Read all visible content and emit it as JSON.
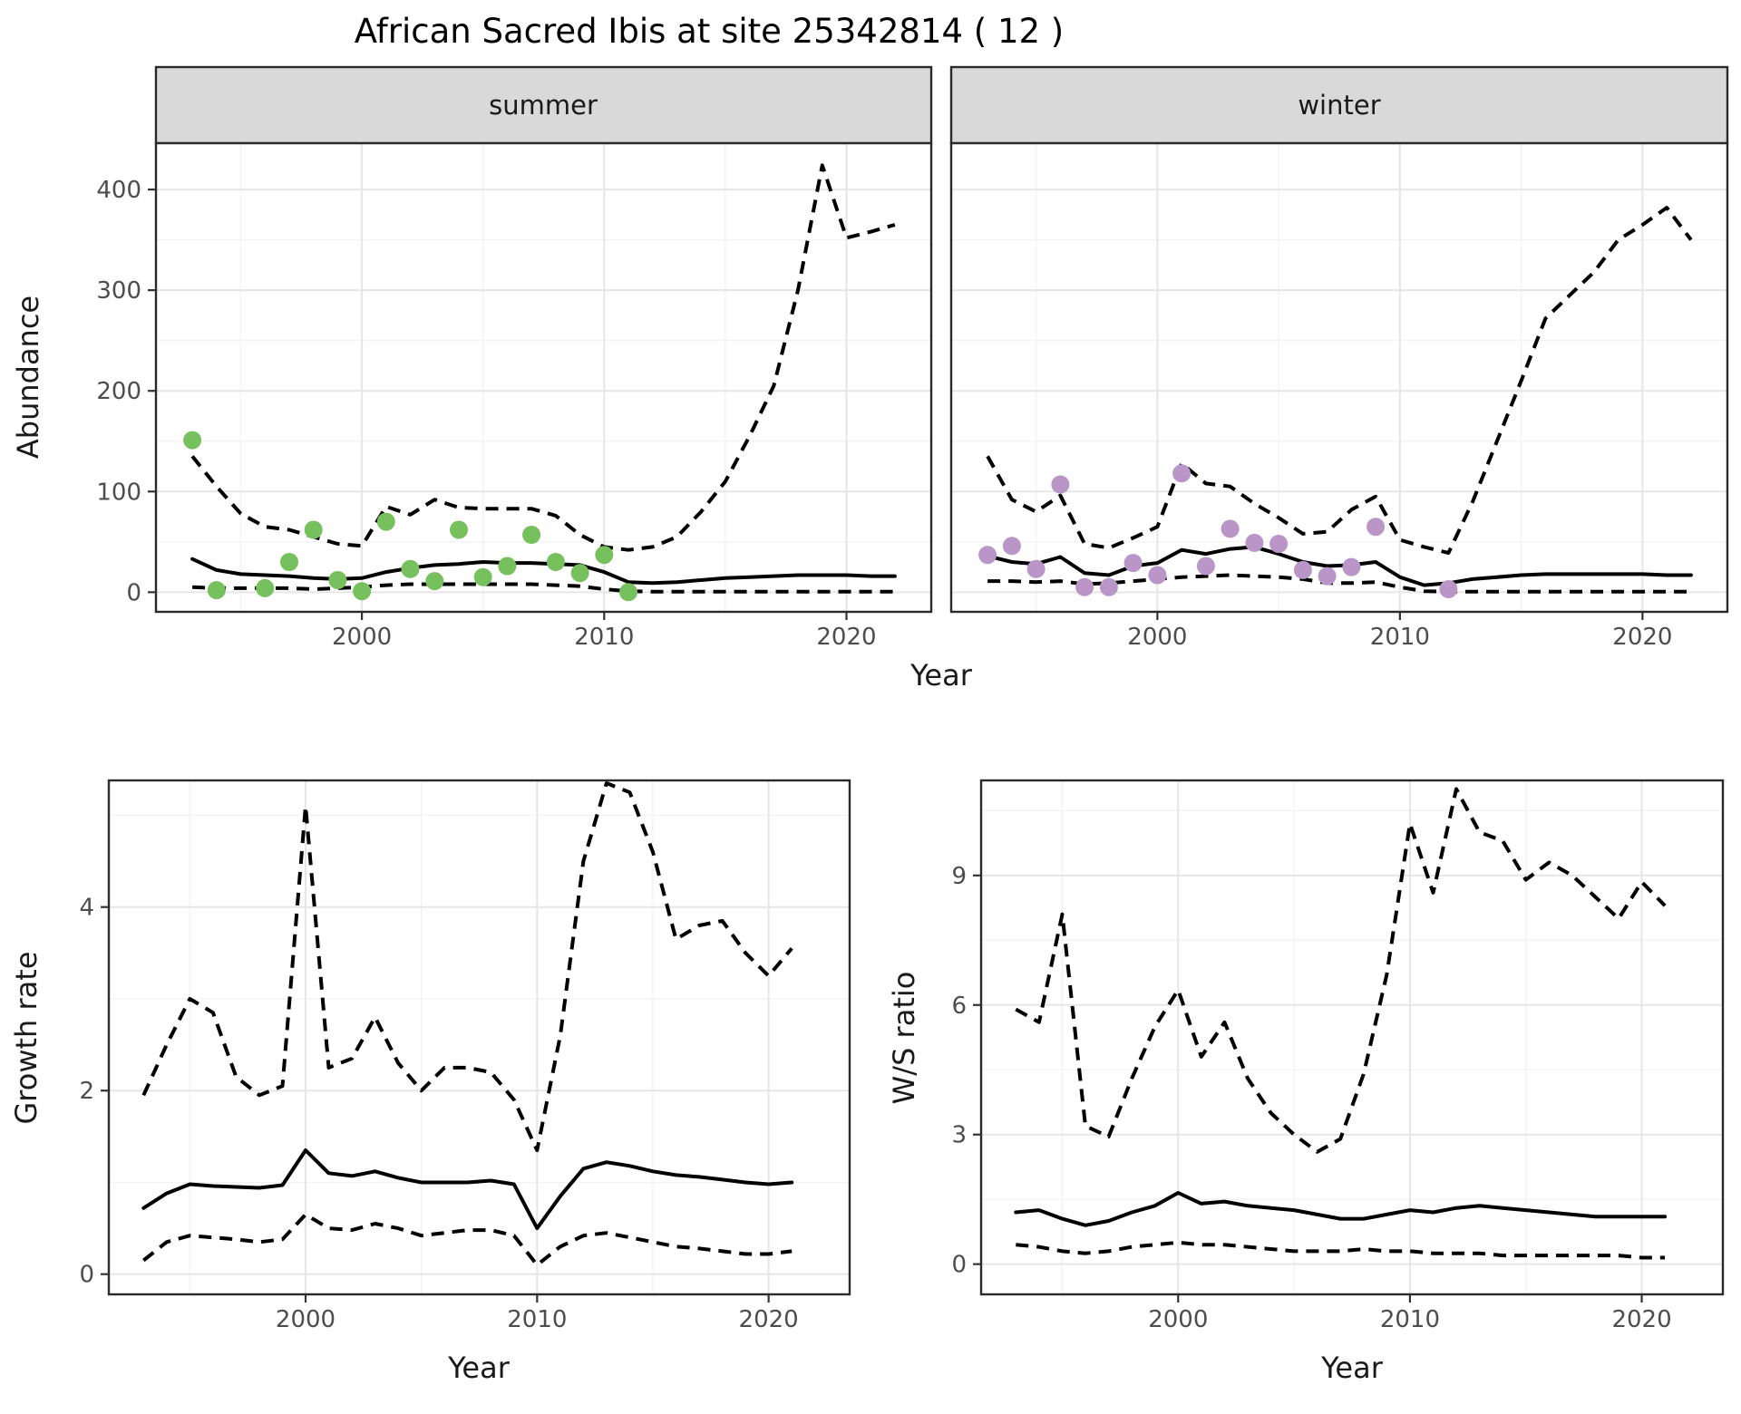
{
  "title": "African Sacred Ibis at site 25342814 ( 12 )",
  "colors": {
    "summer_points": "#76C15E",
    "winter_points": "#BA95C8",
    "median_line": "#000000",
    "ci_line": "#000000",
    "strip_background": "#D9D9D9",
    "panel_border": "#2A2A2A",
    "grid_major": "#E6E6E6",
    "grid_minor": "#F2F2F2",
    "tick_text": "#4D4D4D"
  },
  "chart_data": {
    "type": "line",
    "legend": "none",
    "grid": true,
    "panels": [
      {
        "id": "abundance-summer",
        "facet_label": "summer",
        "xlabel": "Year",
        "ylabel": "Abundance",
        "xlim": [
          1991.5,
          2023.5
        ],
        "ylim": [
          -19.5,
          446
        ],
        "x_major": [
          2000,
          2010,
          2020
        ],
        "x_minor": [
          1995,
          2005,
          2015
        ],
        "y_major": [
          0,
          100,
          200,
          300,
          400
        ],
        "y_minor": [
          50,
          150,
          250,
          350
        ],
        "series": {
          "years": [
            1993,
            1994,
            1995,
            1996,
            1997,
            1998,
            1999,
            2000,
            2001,
            2002,
            2003,
            2004,
            2005,
            2006,
            2007,
            2008,
            2009,
            2010,
            2011,
            2012,
            2013,
            2014,
            2015,
            2016,
            2017,
            2018,
            2019,
            2020,
            2021,
            2022
          ],
          "median": [
            33,
            22,
            18,
            17,
            16,
            14,
            13,
            14,
            20,
            24,
            27,
            28,
            30,
            29,
            29,
            28,
            27,
            20,
            10,
            9,
            10,
            12,
            14,
            15,
            16,
            17,
            17,
            17,
            16,
            16
          ],
          "lower_ci": [
            5,
            4,
            4,
            4,
            4,
            3,
            4,
            5,
            7,
            8,
            8,
            8,
            8,
            8,
            8,
            7,
            6,
            3,
            1,
            0.5,
            0.5,
            0.5,
            0.5,
            0.5,
            0.5,
            0.5,
            0.5,
            0.5,
            0.5,
            0.5
          ],
          "upper_ci": [
            135,
            105,
            78,
            65,
            62,
            55,
            48,
            46,
            85,
            77,
            92,
            84,
            83,
            83,
            83,
            76,
            57,
            45,
            42,
            45,
            55,
            80,
            110,
            155,
            205,
            300,
            424,
            352,
            358,
            365
          ]
        },
        "observations": {
          "years": [
            1993,
            1994,
            1996,
            1997,
            1998,
            1999,
            2000,
            2001,
            2002,
            2003,
            2004,
            2005,
            2006,
            2007,
            2008,
            2009,
            2010,
            2011
          ],
          "values": [
            151,
            2,
            4,
            30,
            62,
            12,
            1,
            70,
            23,
            11,
            62,
            15,
            26,
            57,
            30,
            19,
            37,
            0
          ]
        }
      },
      {
        "id": "abundance-winter",
        "facet_label": "winter",
        "xlabel": "Year",
        "ylabel": "Abundance",
        "xlim": [
          1991.5,
          2023.5
        ],
        "ylim": [
          -19.5,
          446
        ],
        "x_major": [
          2000,
          2010,
          2020
        ],
        "x_minor": [
          1995,
          2005,
          2015
        ],
        "y_major": [
          0,
          100,
          200,
          300,
          400
        ],
        "y_minor": [
          50,
          150,
          250,
          350
        ],
        "series": {
          "years": [
            1993,
            1994,
            1995,
            1996,
            1997,
            1998,
            1999,
            2000,
            2001,
            2002,
            2003,
            2004,
            2005,
            2006,
            2007,
            2008,
            2009,
            2010,
            2011,
            2012,
            2013,
            2014,
            2015,
            2016,
            2017,
            2018,
            2019,
            2020,
            2021,
            2022
          ],
          "median": [
            36,
            30,
            28,
            35,
            19,
            17,
            26,
            29,
            42,
            38,
            43,
            45,
            38,
            30,
            26,
            27,
            30,
            15,
            7,
            9,
            13,
            15,
            17,
            18,
            18,
            18,
            18,
            18,
            17,
            17
          ],
          "lower_ci": [
            11,
            11,
            10,
            11,
            8,
            9,
            11,
            13,
            15,
            16,
            17,
            16,
            15,
            13,
            9,
            9,
            10,
            5,
            1,
            0.5,
            0.5,
            0.5,
            0.5,
            0.5,
            0.5,
            0.5,
            0.5,
            0.5,
            0.5,
            0.5
          ],
          "upper_ci": [
            135,
            92,
            80,
            96,
            48,
            44,
            54,
            65,
            128,
            108,
            105,
            88,
            74,
            58,
            60,
            82,
            95,
            52,
            45,
            39,
            90,
            150,
            210,
            272,
            295,
            318,
            350,
            365,
            382,
            350
          ]
        },
        "observations": {
          "years": [
            1993,
            1994,
            1995,
            1996,
            1997,
            1998,
            1999,
            2000,
            2001,
            2002,
            2003,
            2004,
            2005,
            2006,
            2007,
            2008,
            2009,
            2012
          ],
          "values": [
            37,
            46,
            23,
            107,
            5,
            5,
            29,
            17,
            118,
            26,
            63,
            49,
            48,
            22,
            16,
            25,
            65,
            3
          ]
        }
      },
      {
        "id": "growth-rate",
        "facet_label": "",
        "xlabel": "Year",
        "ylabel": "Growth rate",
        "xlim": [
          1991.5,
          2023.5
        ],
        "ylim": [
          -0.22,
          5.38
        ],
        "x_major": [
          2000,
          2010,
          2020
        ],
        "x_minor": [
          1995,
          2005,
          2015
        ],
        "y_major": [
          0,
          2,
          4
        ],
        "y_minor": [
          1,
          3,
          5
        ],
        "series": {
          "years": [
            1993,
            1994,
            1995,
            1996,
            1997,
            1998,
            1999,
            2000,
            2001,
            2002,
            2003,
            2004,
            2005,
            2006,
            2007,
            2008,
            2009,
            2010,
            2011,
            2012,
            2013,
            2014,
            2015,
            2016,
            2017,
            2018,
            2019,
            2020,
            2021
          ],
          "median": [
            0.72,
            0.88,
            0.98,
            0.96,
            0.95,
            0.94,
            0.97,
            1.35,
            1.1,
            1.07,
            1.12,
            1.05,
            1.0,
            1.0,
            1.0,
            1.02,
            0.98,
            0.5,
            0.85,
            1.15,
            1.22,
            1.18,
            1.12,
            1.08,
            1.06,
            1.03,
            1.0,
            0.98,
            1.0
          ],
          "lower_ci": [
            0.15,
            0.35,
            0.42,
            0.4,
            0.38,
            0.35,
            0.38,
            0.65,
            0.5,
            0.48,
            0.55,
            0.5,
            0.42,
            0.45,
            0.48,
            0.48,
            0.42,
            0.1,
            0.3,
            0.42,
            0.45,
            0.4,
            0.35,
            0.3,
            0.28,
            0.25,
            0.22,
            0.22,
            0.25
          ],
          "upper_ci": [
            1.95,
            2.5,
            3.0,
            2.85,
            2.15,
            1.95,
            2.05,
            5.1,
            2.25,
            2.35,
            2.8,
            2.3,
            2.0,
            2.25,
            2.25,
            2.2,
            1.9,
            1.35,
            2.6,
            4.5,
            5.35,
            5.25,
            4.6,
            3.65,
            3.8,
            3.85,
            3.5,
            3.25,
            3.55
          ]
        },
        "observations": null
      },
      {
        "id": "ws-ratio",
        "facet_label": "",
        "xlabel": "Year",
        "ylabel": "W/S ratio",
        "xlim": [
          1991.5,
          2023.5
        ],
        "ylim": [
          -0.7,
          11.2
        ],
        "x_major": [
          2000,
          2010,
          2020
        ],
        "x_minor": [
          1995,
          2005,
          2015
        ],
        "y_major": [
          0,
          3,
          6,
          9
        ],
        "y_minor": [
          1.5,
          4.5,
          7.5,
          10.5
        ],
        "series": {
          "years": [
            1993,
            1994,
            1995,
            1996,
            1997,
            1998,
            1999,
            2000,
            2001,
            2002,
            2003,
            2004,
            2005,
            2006,
            2007,
            2008,
            2009,
            2010,
            2011,
            2012,
            2013,
            2014,
            2015,
            2016,
            2017,
            2018,
            2019,
            2020,
            2021
          ],
          "median": [
            1.2,
            1.25,
            1.05,
            0.9,
            1.0,
            1.2,
            1.35,
            1.65,
            1.4,
            1.45,
            1.35,
            1.3,
            1.25,
            1.15,
            1.05,
            1.05,
            1.15,
            1.25,
            1.2,
            1.3,
            1.35,
            1.3,
            1.25,
            1.2,
            1.15,
            1.1,
            1.1,
            1.1,
            1.1
          ],
          "lower_ci": [
            0.45,
            0.4,
            0.3,
            0.25,
            0.3,
            0.4,
            0.45,
            0.5,
            0.45,
            0.45,
            0.4,
            0.35,
            0.3,
            0.3,
            0.3,
            0.35,
            0.3,
            0.3,
            0.25,
            0.25,
            0.25,
            0.2,
            0.2,
            0.2,
            0.2,
            0.2,
            0.2,
            0.15,
            0.15
          ],
          "upper_ci": [
            5.9,
            5.6,
            8.1,
            3.2,
            2.95,
            4.3,
            5.5,
            6.35,
            4.8,
            5.6,
            4.3,
            3.5,
            3.0,
            2.6,
            2.9,
            4.4,
            6.7,
            10.2,
            8.6,
            11.0,
            10.0,
            9.8,
            8.9,
            9.3,
            9.0,
            8.5,
            8.0,
            8.85,
            8.3
          ]
        },
        "observations": null
      }
    ]
  }
}
